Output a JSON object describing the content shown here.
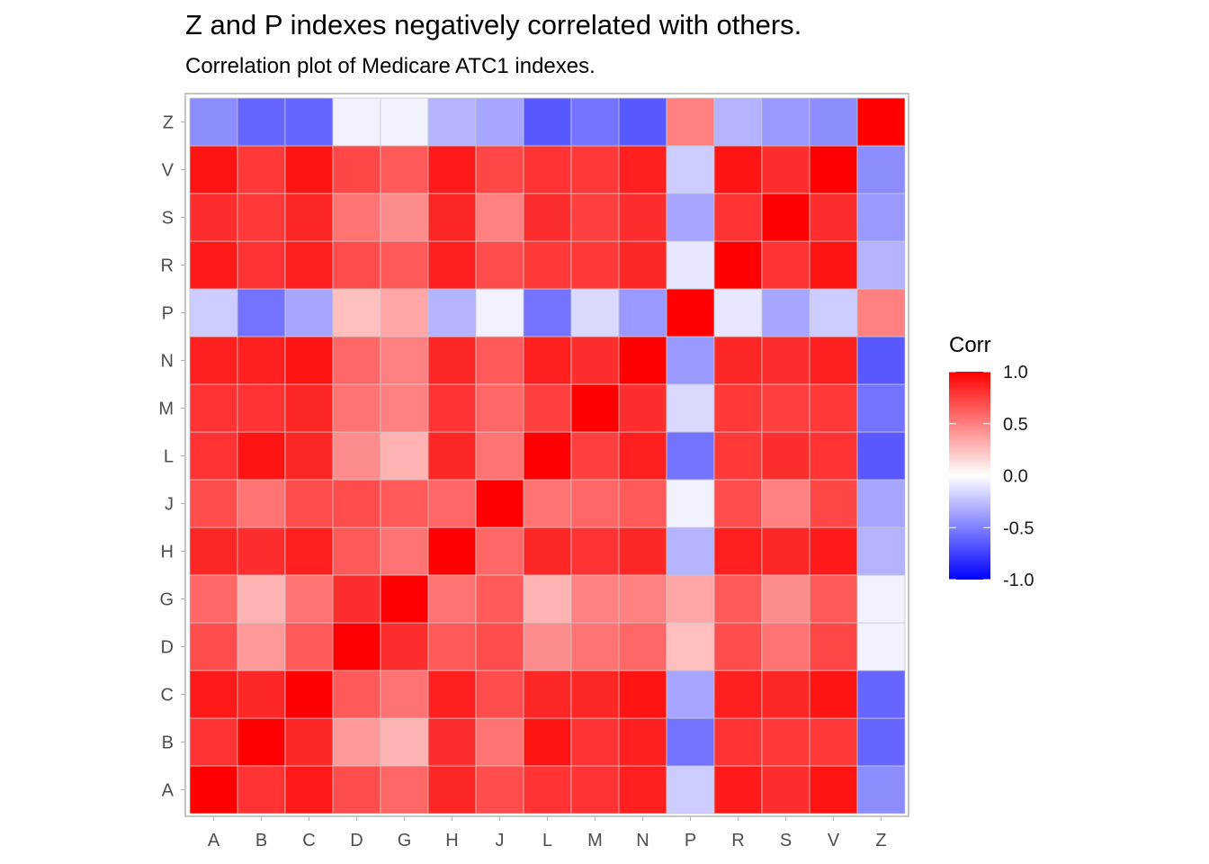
{
  "chart_data": {
    "type": "heatmap",
    "title": "Z and P indexes negatively correlated with others.",
    "subtitle": "Correlation plot of Medicare ATC1 indexes.",
    "x": [
      "A",
      "B",
      "C",
      "D",
      "G",
      "H",
      "J",
      "L",
      "M",
      "N",
      "P",
      "R",
      "S",
      "V",
      "Z"
    ],
    "y": [
      "A",
      "B",
      "C",
      "D",
      "G",
      "H",
      "J",
      "L",
      "M",
      "N",
      "P",
      "R",
      "S",
      "V",
      "Z"
    ],
    "values": [
      [
        1.0,
        0.8,
        0.9,
        0.7,
        0.6,
        0.85,
        0.7,
        0.8,
        0.8,
        0.88,
        -0.2,
        0.9,
        0.82,
        0.92,
        -0.45
      ],
      [
        0.8,
        1.0,
        0.85,
        0.4,
        0.3,
        0.82,
        0.55,
        0.92,
        0.8,
        0.88,
        -0.55,
        0.8,
        0.78,
        0.78,
        -0.6
      ],
      [
        0.9,
        0.85,
        1.0,
        0.65,
        0.55,
        0.88,
        0.7,
        0.85,
        0.85,
        0.92,
        -0.35,
        0.88,
        0.85,
        0.92,
        -0.6
      ],
      [
        0.7,
        0.4,
        0.65,
        1.0,
        0.82,
        0.65,
        0.7,
        0.45,
        0.55,
        0.6,
        0.25,
        0.7,
        0.55,
        0.72,
        -0.05
      ],
      [
        0.6,
        0.3,
        0.55,
        0.82,
        1.0,
        0.55,
        0.65,
        0.3,
        0.5,
        0.5,
        0.35,
        0.65,
        0.45,
        0.65,
        -0.05
      ],
      [
        0.85,
        0.82,
        0.88,
        0.65,
        0.55,
        1.0,
        0.6,
        0.85,
        0.8,
        0.85,
        -0.3,
        0.88,
        0.85,
        0.9,
        -0.3
      ],
      [
        0.7,
        0.55,
        0.7,
        0.7,
        0.65,
        0.6,
        1.0,
        0.55,
        0.6,
        0.65,
        -0.05,
        0.7,
        0.5,
        0.72,
        -0.35
      ],
      [
        0.8,
        0.92,
        0.85,
        0.45,
        0.3,
        0.85,
        0.55,
        1.0,
        0.75,
        0.88,
        -0.55,
        0.78,
        0.82,
        0.8,
        -0.65
      ],
      [
        0.8,
        0.8,
        0.85,
        0.55,
        0.5,
        0.8,
        0.6,
        0.75,
        1.0,
        0.82,
        -0.15,
        0.78,
        0.75,
        0.78,
        -0.55
      ],
      [
        0.88,
        0.88,
        0.92,
        0.6,
        0.5,
        0.85,
        0.65,
        0.88,
        0.82,
        1.0,
        -0.4,
        0.85,
        0.82,
        0.88,
        -0.65
      ],
      [
        -0.2,
        -0.55,
        -0.35,
        0.25,
        0.35,
        -0.3,
        -0.05,
        -0.55,
        -0.15,
        -0.4,
        1.0,
        -0.1,
        -0.35,
        -0.2,
        0.5
      ],
      [
        0.9,
        0.8,
        0.88,
        0.7,
        0.65,
        0.88,
        0.7,
        0.78,
        0.78,
        0.85,
        -0.1,
        1.0,
        0.8,
        0.92,
        -0.3
      ],
      [
        0.82,
        0.78,
        0.85,
        0.55,
        0.45,
        0.85,
        0.5,
        0.82,
        0.75,
        0.82,
        -0.35,
        0.8,
        1.0,
        0.82,
        -0.4
      ],
      [
        0.92,
        0.78,
        0.92,
        0.72,
        0.65,
        0.9,
        0.72,
        0.8,
        0.78,
        0.88,
        -0.2,
        0.92,
        0.82,
        1.0,
        -0.45
      ],
      [
        -0.45,
        -0.6,
        -0.6,
        -0.05,
        -0.05,
        -0.3,
        -0.35,
        -0.65,
        -0.55,
        -0.65,
        0.5,
        -0.3,
        -0.4,
        -0.45,
        1.0
      ]
    ],
    "scale": {
      "min": -1.0,
      "max": 1.0,
      "low_color": "#0000ff",
      "mid_color": "#ffffff",
      "high_color": "#ff0000"
    },
    "legend": {
      "title": "Corr",
      "breaks": [
        "1.0",
        "0.5",
        "0.0",
        "-0.5",
        "-1.0"
      ],
      "position": "right"
    },
    "grid": true
  }
}
